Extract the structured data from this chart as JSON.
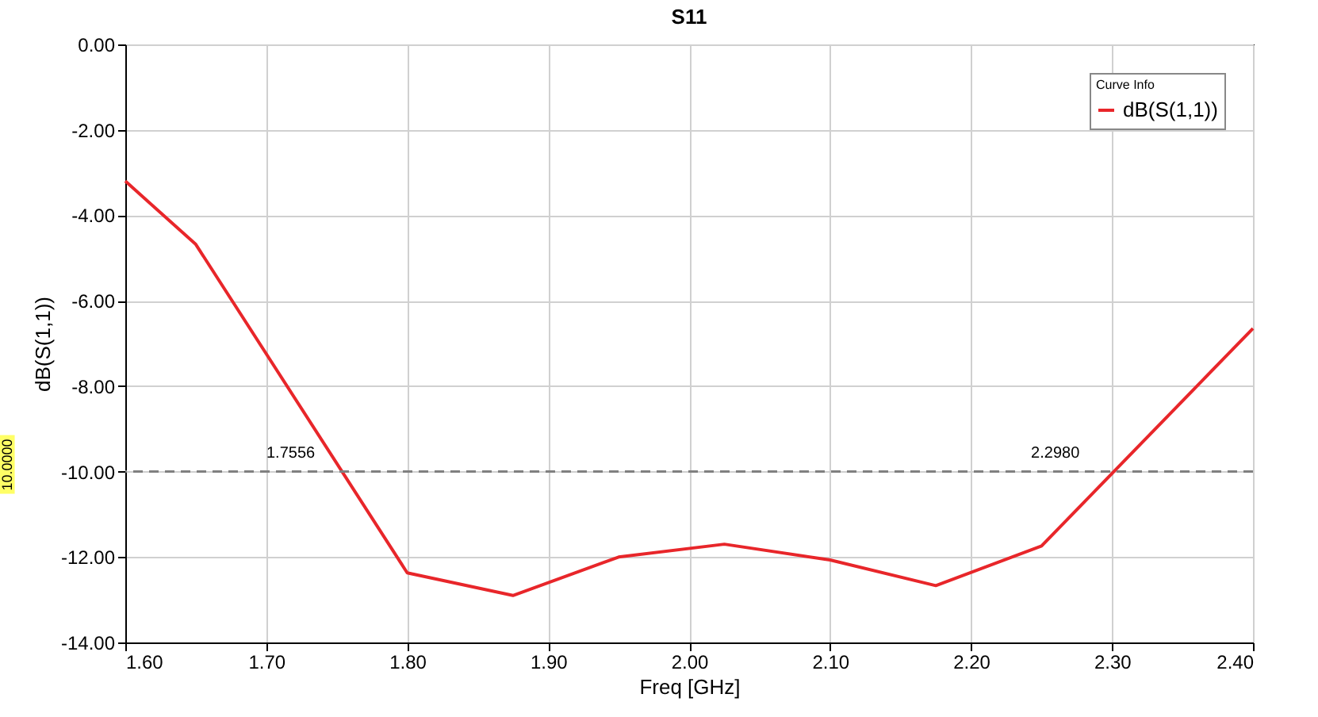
{
  "chart_data": {
    "type": "line",
    "title": "S11",
    "xlabel": "Freq [GHz]",
    "ylabel": "dB(S(1,1))",
    "legend_title": "Curve Info",
    "x": [
      1.6,
      1.65,
      1.8,
      1.875,
      1.95,
      2.025,
      2.1,
      2.175,
      2.25,
      2.4
    ],
    "series": [
      {
        "name": "dB(S(1,1))",
        "color": "#e8262a",
        "values": [
          -3.2,
          -4.68,
          -12.37,
          -12.9,
          -12.0,
          -11.7,
          -12.07,
          -12.67,
          -11.74,
          -6.65
        ]
      }
    ],
    "xlim": [
      1.6,
      2.4
    ],
    "xticks": [
      {
        "value": 1.6,
        "label": "1.60"
      },
      {
        "value": 1.7,
        "label": "1.70"
      },
      {
        "value": 1.8,
        "label": "1.80"
      },
      {
        "value": 1.9,
        "label": "1.90"
      },
      {
        "value": 2.0,
        "label": "2.00"
      },
      {
        "value": 2.1,
        "label": "2.10"
      },
      {
        "value": 2.2,
        "label": "2.20"
      },
      {
        "value": 2.3,
        "label": "2.30"
      },
      {
        "value": 2.4,
        "label": "2.40"
      }
    ],
    "ylim": [
      -14,
      0
    ],
    "yticks": [
      {
        "value": -14,
        "label": "-14.00"
      },
      {
        "value": -12,
        "label": "-12.00"
      },
      {
        "value": -10,
        "label": "-10.00"
      },
      {
        "value": -8,
        "label": "-8.00"
      },
      {
        "value": -6,
        "label": "-6.00"
      },
      {
        "value": -4,
        "label": "-4.00"
      },
      {
        "value": -2,
        "label": "-2.00"
      },
      {
        "value": 0,
        "label": "0.00"
      }
    ],
    "ref_lines": [
      {
        "axis": "y",
        "value": -10,
        "color": "#808080",
        "line_style": "dashed"
      }
    ],
    "annotations": [
      "10.0000",
      {
        "text": "1.7556",
        "x": 1.7556,
        "y": -10
      },
      {
        "text": "2.2980",
        "x": 2.298,
        "y": -10
      }
    ],
    "grid": true,
    "legend": "top right",
    "line_style": "solid"
  }
}
